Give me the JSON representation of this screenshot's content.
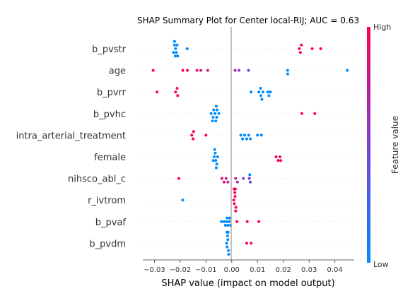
{
  "chart_data": {
    "type": "scatter",
    "title": "SHAP Summary Plot for Center local-RIJ; AUC = 0.63",
    "xlabel": "SHAP value (impact on model output)",
    "ylabel": "",
    "xlim": [
      -0.0345,
      0.0475
    ],
    "xticks": [
      -0.03,
      -0.02,
      -0.01,
      0.0,
      0.01,
      0.02,
      0.03,
      0.04
    ],
    "xtick_labels": [
      "−0.03",
      "−0.02",
      "−0.01",
      "0.00",
      "0.01",
      "0.02",
      "0.03",
      "0.04"
    ],
    "grid": false,
    "colorbar": {
      "label": "Feature value",
      "high_label": "High",
      "low_label": "Low",
      "low_color": "#008afb",
      "mid_color": "#7c3fd6",
      "high_color": "#ff0052"
    },
    "features": [
      {
        "name": "b_pvstr",
        "points": [
          {
            "x": -0.0218,
            "v": 0
          },
          {
            "x": -0.0215,
            "v": 0
          },
          {
            "x": -0.0222,
            "v": 0
          },
          {
            "x": -0.0212,
            "v": 0
          },
          {
            "x": -0.0226,
            "v": 0
          },
          {
            "x": -0.0219,
            "v": 0
          },
          {
            "x": -0.021,
            "v": 0
          },
          {
            "x": -0.0222,
            "v": 0
          },
          {
            "x": -0.0173,
            "v": 0
          },
          {
            "x": 0.0262,
            "v": 1
          },
          {
            "x": 0.0266,
            "v": 1
          },
          {
            "x": 0.027,
            "v": 1
          },
          {
            "x": 0.0312,
            "v": 1
          },
          {
            "x": 0.0345,
            "v": 1
          }
        ]
      },
      {
        "name": "age",
        "points": [
          {
            "x": -0.0305,
            "v": 1
          },
          {
            "x": -0.019,
            "v": 1
          },
          {
            "x": -0.0172,
            "v": 1
          },
          {
            "x": -0.0135,
            "v": 0.85
          },
          {
            "x": -0.012,
            "v": 0.85
          },
          {
            "x": -0.0093,
            "v": 0.75
          },
          {
            "x": 0.0013,
            "v": 0.65
          },
          {
            "x": 0.0028,
            "v": 0.55
          },
          {
            "x": 0.0065,
            "v": 0.5
          },
          {
            "x": 0.0217,
            "v": 0
          },
          {
            "x": 0.0217,
            "v": 0
          },
          {
            "x": 0.0448,
            "v": 0
          }
        ]
      },
      {
        "name": "b_pvrr",
        "points": [
          {
            "x": -0.029,
            "v": 1
          },
          {
            "x": -0.0218,
            "v": 1
          },
          {
            "x": -0.021,
            "v": 1
          },
          {
            "x": -0.0212,
            "v": 1
          },
          {
            "x": 0.0075,
            "v": 0
          },
          {
            "x": 0.0105,
            "v": 0
          },
          {
            "x": 0.0113,
            "v": 0
          },
          {
            "x": 0.0121,
            "v": 0
          },
          {
            "x": 0.0112,
            "v": 0
          },
          {
            "x": 0.0117,
            "v": 0
          },
          {
            "x": 0.014,
            "v": 0
          },
          {
            "x": 0.0144,
            "v": 0
          },
          {
            "x": 0.015,
            "v": 0
          }
        ]
      },
      {
        "name": "b_pvhc",
        "points": [
          {
            "x": -0.008,
            "v": 0
          },
          {
            "x": -0.0072,
            "v": 0
          },
          {
            "x": -0.0065,
            "v": 0
          },
          {
            "x": -0.0058,
            "v": 0
          },
          {
            "x": -0.005,
            "v": 0
          },
          {
            "x": -0.007,
            "v": 0
          },
          {
            "x": -0.0057,
            "v": 0
          },
          {
            "x": -0.0062,
            "v": 0
          },
          {
            "x": -0.0075,
            "v": 0
          },
          {
            "x": -0.006,
            "v": 0
          },
          {
            "x": 0.0272,
            "v": 1
          },
          {
            "x": 0.0322,
            "v": 1
          }
        ]
      },
      {
        "name": "intra_arterial_treatment",
        "points": [
          {
            "x": -0.0155,
            "v": 1
          },
          {
            "x": -0.015,
            "v": 1
          },
          {
            "x": -0.0148,
            "v": 1
          },
          {
            "x": -0.01,
            "v": 1
          },
          {
            "x": 0.0035,
            "v": 0
          },
          {
            "x": 0.0042,
            "v": 0
          },
          {
            "x": 0.005,
            "v": 0
          },
          {
            "x": 0.0058,
            "v": 0
          },
          {
            "x": 0.0066,
            "v": 0
          },
          {
            "x": 0.0072,
            "v": 0
          },
          {
            "x": 0.01,
            "v": 0
          },
          {
            "x": 0.0115,
            "v": 0
          }
        ]
      },
      {
        "name": "female",
        "points": [
          {
            "x": -0.0068,
            "v": 0
          },
          {
            "x": -0.0062,
            "v": 0
          },
          {
            "x": -0.0055,
            "v": 0
          },
          {
            "x": -0.0064,
            "v": 0
          },
          {
            "x": -0.0058,
            "v": 0
          },
          {
            "x": -0.0072,
            "v": 0
          },
          {
            "x": -0.0066,
            "v": 0
          },
          {
            "x": -0.006,
            "v": 0
          },
          {
            "x": 0.0172,
            "v": 1
          },
          {
            "x": 0.018,
            "v": 1
          },
          {
            "x": 0.0187,
            "v": 1
          },
          {
            "x": 0.019,
            "v": 1
          }
        ]
      },
      {
        "name": "nihsco_abl_c",
        "points": [
          {
            "x": -0.0205,
            "v": 1
          },
          {
            "x": -0.0038,
            "v": 0.9
          },
          {
            "x": -0.003,
            "v": 0.85
          },
          {
            "x": -0.0022,
            "v": 0.8
          },
          {
            "x": -0.0015,
            "v": 0.75
          },
          {
            "x": 0.0015,
            "v": 0.7
          },
          {
            "x": 0.0022,
            "v": 0.65
          },
          {
            "x": 0.0045,
            "v": 0.55
          },
          {
            "x": 0.0068,
            "v": 0.5
          },
          {
            "x": 0.0072,
            "v": 0.45
          },
          {
            "x": 0.007,
            "v": 0
          }
        ]
      },
      {
        "name": "r_ivtrom",
        "points": [
          {
            "x": -0.019,
            "v": 0
          },
          {
            "x": 0.0008,
            "v": 1
          },
          {
            "x": 0.001,
            "v": 1
          },
          {
            "x": 0.0013,
            "v": 1
          },
          {
            "x": 0.0016,
            "v": 1
          },
          {
            "x": 0.0012,
            "v": 1
          },
          {
            "x": 0.0015,
            "v": 1
          },
          {
            "x": 0.0009,
            "v": 1
          },
          {
            "x": 0.0011,
            "v": 1
          },
          {
            "x": 0.0014,
            "v": 1
          },
          {
            "x": 0.001,
            "v": 1
          }
        ]
      },
      {
        "name": "b_pvaf",
        "points": [
          {
            "x": -0.004,
            "v": 0
          },
          {
            "x": -0.003,
            "v": 0
          },
          {
            "x": -0.0025,
            "v": 0
          },
          {
            "x": -0.002,
            "v": 0
          },
          {
            "x": -0.0015,
            "v": 0
          },
          {
            "x": -0.001,
            "v": 0
          },
          {
            "x": -0.0005,
            "v": 0
          },
          {
            "x": -0.0018,
            "v": 0
          },
          {
            "x": -0.0008,
            "v": 0
          },
          {
            "x": 0.002,
            "v": 1
          },
          {
            "x": 0.006,
            "v": 1
          },
          {
            "x": 0.0105,
            "v": 1
          }
        ]
      },
      {
        "name": "b_pvdm",
        "points": [
          {
            "x": -0.002,
            "v": 0
          },
          {
            "x": -0.0018,
            "v": 0
          },
          {
            "x": -0.0015,
            "v": 0
          },
          {
            "x": -0.0013,
            "v": 0
          },
          {
            "x": -0.0016,
            "v": 0
          },
          {
            "x": -0.0012,
            "v": 0
          },
          {
            "x": -0.0019,
            "v": 0
          },
          {
            "x": -0.0014,
            "v": 0
          },
          {
            "x": 0.0058,
            "v": 1
          },
          {
            "x": 0.0075,
            "v": 1
          }
        ]
      }
    ]
  }
}
